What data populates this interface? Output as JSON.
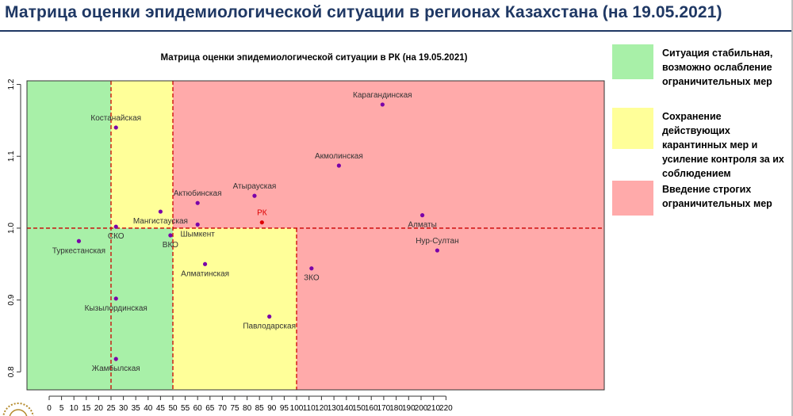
{
  "slide": {
    "title": "Матрица оценки эпидемиологической ситуации в регионах Казахстана (на 19.05.2021)"
  },
  "legend": [
    {
      "label_lines": [
        "Ситуация стабильная,",
        "возможно ослабление",
        "ограничительных мер"
      ],
      "color": "#a8f0a8"
    },
    {
      "label_lines": [
        "Сохранение действующих",
        "карантинных мер и",
        "усиление контроля за их",
        "соблюдением"
      ],
      "color": "#ffff99"
    },
    {
      "label_lines": [
        "Введение строгих",
        "ограничительных мер"
      ],
      "color": "#ffaaaa"
    }
  ],
  "chart_data": {
    "type": "scatter",
    "title": "Матрица оценки эпидемиологической ситуации в РК (на 19.05.2021)",
    "xlabel": "",
    "ylabel": "",
    "xlim": [
      -5,
      225
    ],
    "ylim": [
      0.775,
      1.205
    ],
    "xticks": [
      0,
      5,
      10,
      15,
      20,
      25,
      30,
      35,
      40,
      45,
      50,
      55,
      60,
      65,
      70,
      75,
      80,
      85,
      90,
      95,
      100,
      110,
      120,
      130,
      140,
      150,
      160,
      170,
      180,
      190,
      200,
      210,
      220
    ],
    "yticks": [
      0.8,
      0.9,
      1.0,
      1.1,
      1.2
    ],
    "ytick_labels": [
      "0.8",
      "0.9",
      "1.0",
      "1.1",
      "1.2"
    ],
    "thresholds": {
      "x_green_yellow": 25,
      "x_yellow_red": 50,
      "x_lower_split": 100,
      "y": 1.0
    },
    "zone_colors": {
      "green": "#a8f0a8",
      "yellow": "#ffff99",
      "red": "#ffaaaa"
    },
    "points": [
      {
        "label": "Костанайская",
        "x": 27,
        "y": 1.14,
        "color": "#7a00a8",
        "label_color": "#333333",
        "label_pos": "above"
      },
      {
        "label": "Карагандинская",
        "x": 169,
        "y": 1.172,
        "color": "#7a00a8",
        "label_color": "#333333",
        "label_pos": "above"
      },
      {
        "label": "Акмолинская",
        "x": 134,
        "y": 1.087,
        "color": "#7a00a8",
        "label_color": "#333333",
        "label_pos": "above"
      },
      {
        "label": "Атырауская",
        "x": 83,
        "y": 1.045,
        "color": "#7a00a8",
        "label_color": "#333333",
        "label_pos": "above"
      },
      {
        "label": "Актюбинская",
        "x": 60,
        "y": 1.035,
        "color": "#7a00a8",
        "label_color": "#333333",
        "label_pos": "above"
      },
      {
        "label": "РК",
        "x": 86,
        "y": 1.008,
        "color": "#dd0000",
        "label_color": "#dd0000",
        "label_pos": "above"
      },
      {
        "label": "Мангистауская",
        "x": 45,
        "y": 1.023,
        "color": "#7a00a8",
        "label_color": "#333333",
        "label_pos": "below"
      },
      {
        "label": "Алматы",
        "x": 201,
        "y": 1.018,
        "color": "#7a00a8",
        "label_color": "#333333",
        "label_pos": "below"
      },
      {
        "label": "Шымкент",
        "x": 60,
        "y": 1.005,
        "color": "#7a00a8",
        "label_color": "#333333",
        "label_pos": "below"
      },
      {
        "label": "СКО",
        "x": 27,
        "y": 1.002,
        "color": "#7a00a8",
        "label_color": "#333333",
        "label_pos": "below"
      },
      {
        "label": "ВКО",
        "x": 49,
        "y": 0.99,
        "color": "#7a00a8",
        "label_color": "#333333",
        "label_pos": "below"
      },
      {
        "label": "Туркестанская",
        "x": 12,
        "y": 0.982,
        "color": "#7a00a8",
        "label_color": "#333333",
        "label_pos": "below"
      },
      {
        "label": "Нур-Султан",
        "x": 213,
        "y": 0.969,
        "color": "#7a00a8",
        "label_color": "#333333",
        "label_pos": "above"
      },
      {
        "label": "Алматинская",
        "x": 63,
        "y": 0.95,
        "color": "#7a00a8",
        "label_color": "#333333",
        "label_pos": "below"
      },
      {
        "label": "ЗКО",
        "x": 112,
        "y": 0.944,
        "color": "#7a00a8",
        "label_color": "#333333",
        "label_pos": "below"
      },
      {
        "label": "Кызылординская",
        "x": 27,
        "y": 0.902,
        "color": "#7a00a8",
        "label_color": "#333333",
        "label_pos": "below"
      },
      {
        "label": "Павлодарская",
        "x": 89,
        "y": 0.877,
        "color": "#7a00a8",
        "label_color": "#333333",
        "label_pos": "below"
      },
      {
        "label": "Жамбылская",
        "x": 27,
        "y": 0.818,
        "color": "#7a00a8",
        "label_color": "#333333",
        "label_pos": "below"
      }
    ]
  }
}
